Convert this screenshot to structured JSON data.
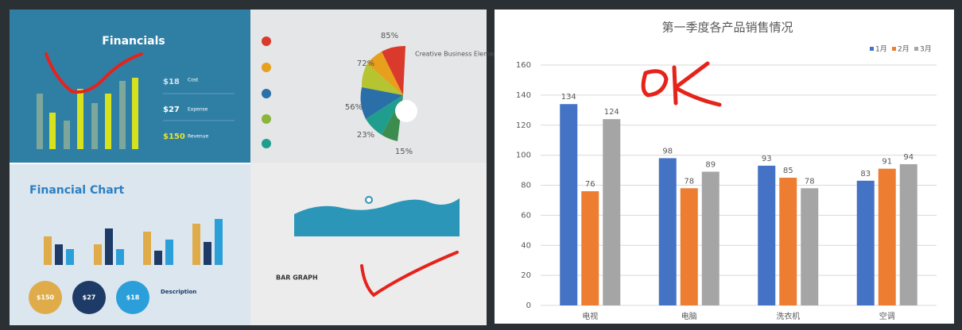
{
  "slides": {
    "financials": {
      "title": "Financials",
      "items": [
        {
          "amount": "$18",
          "label": "Cost"
        },
        {
          "amount": "$27",
          "label": "Expense"
        },
        {
          "amount": "$150",
          "label": "Revenue"
        }
      ]
    },
    "creative": {
      "title": "Creative Business Elements",
      "percents": [
        "85%",
        "72%",
        "56%",
        "23%",
        "15%"
      ]
    },
    "financial_chart": {
      "title": "Financial Chart",
      "circles": [
        "$150",
        "$27",
        "$18"
      ],
      "description": "Description"
    },
    "bar_graph": {
      "title": "BAR GRAPH"
    }
  },
  "chart_data": {
    "type": "bar",
    "title": "第一季度各产品销售情况",
    "categories": [
      "电视",
      "电脑",
      "洗衣机",
      "空调"
    ],
    "series": [
      {
        "name": "1月",
        "color": "#4472c4",
        "values": [
          134,
          98,
          93,
          83
        ]
      },
      {
        "name": "2月",
        "color": "#ed7d31",
        "values": [
          76,
          78,
          85,
          91
        ]
      },
      {
        "name": "3月",
        "color": "#a5a5a5",
        "values": [
          124,
          89,
          78,
          94
        ]
      }
    ],
    "ylim": [
      0,
      160
    ],
    "yticks": [
      0,
      20,
      40,
      60,
      80,
      100,
      120,
      140,
      160
    ],
    "grid": true,
    "legend": "top-right",
    "data_labels": true
  }
}
